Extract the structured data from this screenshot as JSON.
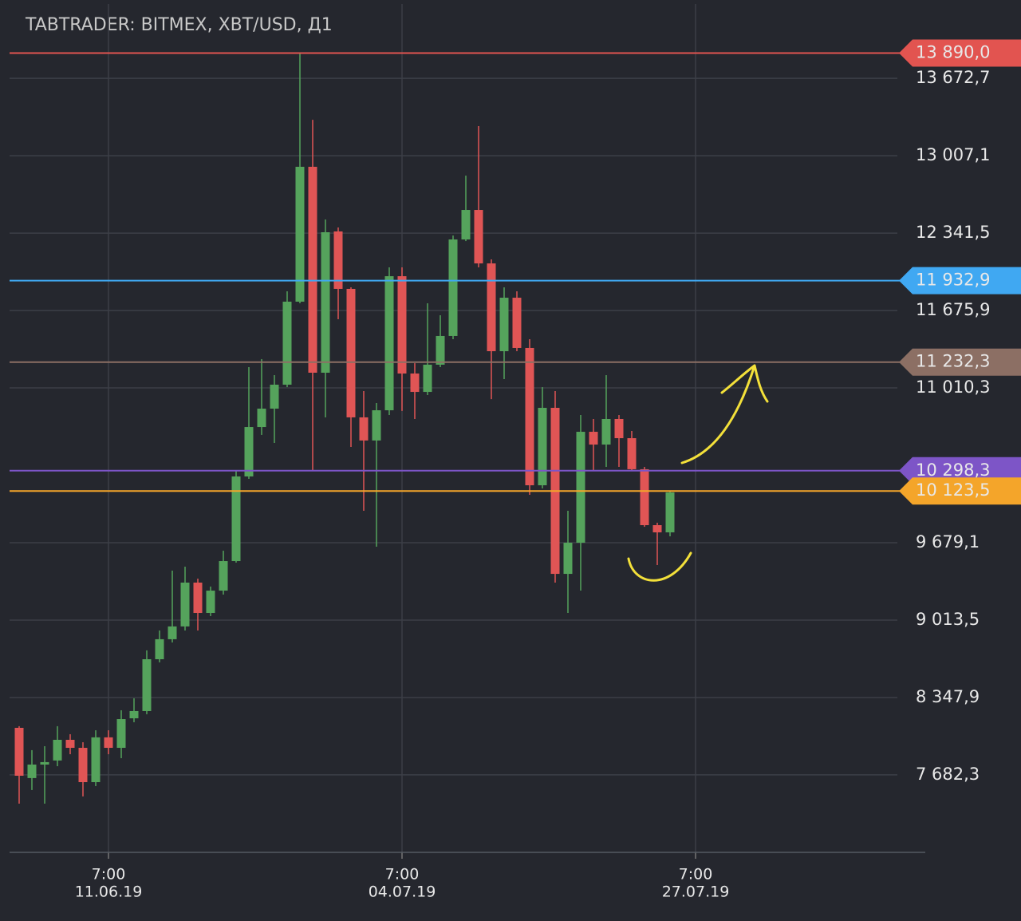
{
  "chart_data": {
    "type": "candlestick",
    "title": "TABTRADER: BITMEX, XBT/USD, Д1",
    "open": [
      8087,
      7655,
      7771,
      7806,
      7984,
      7915,
      7620,
      8005,
      7915,
      8169,
      8231,
      8677,
      8849,
      8959,
      9336,
      9075,
      9267,
      9521,
      10249,
      10674,
      10832,
      11038,
      11752,
      12912,
      11141,
      12356,
      11862,
      10757,
      10558,
      10818,
      11971,
      11134,
      10976,
      11210,
      11457,
      12287,
      12541,
      12081,
      11326,
      11786,
      11354,
      10173,
      10839,
      9411,
      9679,
      10633,
      10523,
      10743,
      10578,
      10311,
      9830,
      9768
    ],
    "high": [
      8101,
      7895,
      7929,
      8101,
      8032,
      7963,
      8066,
      8066,
      8238,
      8341,
      8753,
      8924,
      9439,
      9473,
      9370,
      9302,
      9610,
      10297,
      11189,
      11258,
      11120,
      11841,
      13890,
      13316,
      12459,
      12390,
      11875,
      10983,
      10880,
      12047,
      12047,
      11223,
      11738,
      11635,
      12321,
      12836,
      13262,
      12116,
      11875,
      11841,
      11429,
      11017,
      10983,
      9954,
      10777,
      10743,
      11120,
      10777,
      10640,
      10331,
      9851,
      10125
    ],
    "low": [
      7435,
      7552,
      7435,
      7757,
      7860,
      7497,
      7586,
      7860,
      7826,
      8135,
      8204,
      8650,
      8821,
      8924,
      8924,
      9048,
      9233,
      9508,
      10228,
      10606,
      10537,
      11017,
      11738,
      10297,
      10757,
      11601,
      10503,
      9954,
      9645,
      10777,
      10812,
      10743,
      10949,
      11189,
      11429,
      12273,
      12047,
      10914,
      11086,
      11326,
      10091,
      10146,
      9336,
      9075,
      9267,
      10297,
      10331,
      10331,
      10297,
      9816,
      9487,
      9734
    ],
    "close": [
      7675,
      7771,
      7792,
      7984,
      7915,
      7620,
      8005,
      7915,
      8162,
      8231,
      8677,
      8849,
      8959,
      9336,
      9075,
      9267,
      9521,
      10249,
      10674,
      10832,
      11038,
      11752,
      12912,
      11141,
      12349,
      11862,
      10757,
      10558,
      10818,
      11971,
      11134,
      10976,
      11210,
      11457,
      12287,
      12541,
      12081,
      11326,
      11786,
      11354,
      10173,
      10839,
      9411,
      9679,
      10633,
      10523,
      10743,
      10578,
      10311,
      9830,
      9768,
      10112
    ],
    "up_color": "#55a35c",
    "down_color": "#e05555",
    "ylim": [
      7016,
      14312
    ],
    "yticks": [
      {
        "value": 13672.7,
        "label": "13 672,7"
      },
      {
        "value": 13007.1,
        "label": "13 007,1"
      },
      {
        "value": 12341.5,
        "label": "12 341,5"
      },
      {
        "value": 11675.9,
        "label": "11 675,9"
      },
      {
        "value": 11010.3,
        "label": "11 010,3"
      },
      {
        "value": 9679.1,
        "label": "9 679,1"
      },
      {
        "value": 9013.5,
        "label": "9 013,5"
      },
      {
        "value": 8347.9,
        "label": "8 347,9"
      },
      {
        "value": 7682.3,
        "label": "7 682,3"
      }
    ],
    "xlim": [
      -0.75,
      71
    ],
    "xticks": [
      {
        "value": 7,
        "time": "7:00",
        "label": "11.06.19"
      },
      {
        "value": 30,
        "time": "7:00",
        "label": "04.07.19"
      },
      {
        "value": 53,
        "time": "7:00",
        "label": "27.07.19"
      }
    ],
    "levels": [
      {
        "value": 13890.0,
        "label": "13 890,0",
        "color": "#e25450"
      },
      {
        "value": 11932.9,
        "label": "11 932,9",
        "color": "#40a8f2"
      },
      {
        "value": 11232.3,
        "label": "11 232,3",
        "color": "#8c6f64"
      },
      {
        "value": 10298.3,
        "label": "10 298,3",
        "color": "#7d55c7"
      },
      {
        "value": 10123.5,
        "label": "10 123,5",
        "color": "#f4a52a"
      }
    ],
    "grid": true
  }
}
